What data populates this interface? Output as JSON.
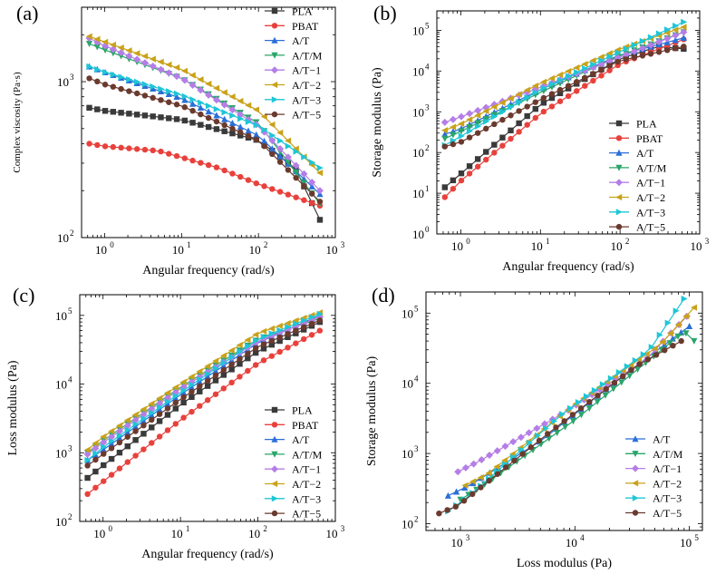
{
  "figure": {
    "description_panels": [
      "(a)",
      "(b)",
      "(c)",
      "(d)"
    ]
  },
  "series_colors": {
    "PLA": "#3a3a3a",
    "PBAT": "#e8413c",
    "A/T": "#2a6fd8",
    "A/T/M": "#2aa56a",
    "A/T−1": "#b57ee6",
    "A/T−2": "#c9a21a",
    "A/T−3": "#1ec6d6",
    "A/T−5": "#6b3a2e"
  },
  "series_markers": {
    "PLA": "square",
    "PBAT": "circle",
    "A/T": "triangle-up",
    "A/T/M": "triangle-down",
    "A/T−1": "diamond",
    "A/T−2": "triangle-left",
    "A/T−3": "triangle-right",
    "A/T−5": "circle"
  },
  "chart_data": [
    {
      "panel_label": "(a)",
      "type": "line",
      "xscale": "log",
      "yscale": "log",
      "xlabel": "Angular frequency (rad/s)",
      "ylabel": "Complex viscosity (Pa·s)",
      "xlim": [
        0.5,
        1000
      ],
      "ylim": [
        100,
        3000
      ],
      "xticks": [
        {
          "v": 1,
          "label": "10",
          "exp": "0"
        },
        {
          "v": 10,
          "label": "10",
          "exp": "1"
        },
        {
          "v": 100,
          "label": "10",
          "exp": "2"
        },
        {
          "v": 1000,
          "label": "10",
          "exp": "3"
        }
      ],
      "yticks": [
        {
          "v": 100,
          "label": "10",
          "exp": "2"
        },
        {
          "v": 1000,
          "label": "10",
          "exp": "3"
        }
      ],
      "legend_position": "top-right",
      "series": [
        {
          "name": "PLA",
          "anchors": [
            [
              0.63,
              680
            ],
            [
              1,
              650
            ],
            [
              10,
              570
            ],
            [
              100,
              420
            ],
            [
              300,
              280
            ],
            [
              630,
              130
            ]
          ]
        },
        {
          "name": "PBAT",
          "anchors": [
            [
              0.63,
              400
            ],
            [
              1,
              385
            ],
            [
              5,
              360
            ],
            [
              30,
              280
            ],
            [
              100,
              220
            ],
            [
              630,
              160
            ]
          ]
        },
        {
          "name": "A/T",
          "anchors": [
            [
              0.63,
              1250
            ],
            [
              1,
              1150
            ],
            [
              10,
              780
            ],
            [
              100,
              450
            ],
            [
              630,
              190
            ]
          ]
        },
        {
          "name": "A/T/M",
          "anchors": [
            [
              0.63,
              1750
            ],
            [
              1,
              1600
            ],
            [
              10,
              1050
            ],
            [
              100,
              540
            ],
            [
              630,
              165
            ]
          ]
        },
        {
          "name": "A/T−1",
          "anchors": [
            [
              0.63,
              1900
            ],
            [
              1,
              1700
            ],
            [
              10,
              1050
            ],
            [
              100,
              520
            ],
            [
              630,
              200
            ]
          ]
        },
        {
          "name": "A/T−2",
          "anchors": [
            [
              0.63,
              1950
            ],
            [
              1,
              1800
            ],
            [
              10,
              1200
            ],
            [
              100,
              650
            ],
            [
              630,
              260
            ]
          ]
        },
        {
          "name": "A/T−3",
          "anchors": [
            [
              0.63,
              1250
            ],
            [
              1,
              1150
            ],
            [
              10,
              820
            ],
            [
              100,
              520
            ],
            [
              630,
              280
            ]
          ]
        },
        {
          "name": "A/T−5",
          "anchors": [
            [
              0.63,
              1050
            ],
            [
              1,
              960
            ],
            [
              10,
              700
            ],
            [
              100,
              420
            ],
            [
              630,
              170
            ]
          ]
        }
      ]
    },
    {
      "panel_label": "(b)",
      "type": "line",
      "xscale": "log",
      "yscale": "log",
      "xlabel": "Angular frequency (rad/s)",
      "ylabel": "Storage modulus (Pa)",
      "xlim": [
        0.5,
        1000
      ],
      "ylim": [
        1,
        300000
      ],
      "xticks": [
        {
          "v": 1,
          "label": "10",
          "exp": "0"
        },
        {
          "v": 10,
          "label": "10",
          "exp": "1"
        },
        {
          "v": 100,
          "label": "10",
          "exp": "2"
        },
        {
          "v": 1000,
          "label": "10",
          "exp": "3"
        }
      ],
      "yticks": [
        {
          "v": 1,
          "label": "10",
          "exp": "0"
        },
        {
          "v": 10,
          "label": "10",
          "exp": "1"
        },
        {
          "v": 100,
          "label": "10",
          "exp": "2"
        },
        {
          "v": 1000,
          "label": "10",
          "exp": "3"
        },
        {
          "v": 10000,
          "label": "10",
          "exp": "4"
        },
        {
          "v": 100000,
          "label": "10",
          "exp": "5"
        }
      ],
      "legend_position": "bottom-right",
      "series": [
        {
          "name": "PLA",
          "anchors": [
            [
              0.63,
              14
            ],
            [
              1,
              30
            ],
            [
              10,
              1500
            ],
            [
              100,
              20000
            ],
            [
              300,
              40000
            ],
            [
              630,
              35000
            ]
          ]
        },
        {
          "name": "PBAT",
          "anchors": [
            [
              0.63,
              8
            ],
            [
              1,
              20
            ],
            [
              10,
              900
            ],
            [
              100,
              15000
            ],
            [
              630,
              60000
            ]
          ]
        },
        {
          "name": "A/T",
          "anchors": [
            [
              0.63,
              280
            ],
            [
              1,
              380
            ],
            [
              10,
              3500
            ],
            [
              100,
              25000
            ],
            [
              630,
              65000
            ]
          ]
        },
        {
          "name": "A/T/M",
          "anchors": [
            [
              0.63,
              220
            ],
            [
              1,
              330
            ],
            [
              10,
              3000
            ],
            [
              100,
              24000
            ],
            [
              630,
              90000
            ]
          ]
        },
        {
          "name": "A/T−1",
          "anchors": [
            [
              0.63,
              550
            ],
            [
              1,
              750
            ],
            [
              10,
              4000
            ],
            [
              100,
              22000
            ],
            [
              630,
              90000
            ]
          ]
        },
        {
          "name": "A/T−2",
          "anchors": [
            [
              0.63,
              350
            ],
            [
              1,
              500
            ],
            [
              10,
              5000
            ],
            [
              100,
              35000
            ],
            [
              630,
              120000
            ]
          ]
        },
        {
          "name": "A/T−3",
          "anchors": [
            [
              0.63,
              150
            ],
            [
              1,
              250
            ],
            [
              10,
              3500
            ],
            [
              100,
              30000
            ],
            [
              630,
              160000
            ]
          ]
        },
        {
          "name": "A/T−5",
          "anchors": [
            [
              0.63,
              140
            ],
            [
              1,
              180
            ],
            [
              10,
              2000
            ],
            [
              100,
              18000
            ],
            [
              630,
              40000
            ]
          ]
        }
      ]
    },
    {
      "panel_label": "(c)",
      "type": "line",
      "xscale": "log",
      "yscale": "log",
      "xlabel": "Angular frequency (rad/s)",
      "ylabel": "Loss modulus (Pa)",
      "xlim": [
        0.5,
        1000
      ],
      "ylim": [
        100,
        200000
      ],
      "xticks": [
        {
          "v": 1,
          "label": "10",
          "exp": "0"
        },
        {
          "v": 10,
          "label": "10",
          "exp": "1"
        },
        {
          "v": 100,
          "label": "10",
          "exp": "2"
        },
        {
          "v": 1000,
          "label": "10",
          "exp": "3"
        }
      ],
      "yticks": [
        {
          "v": 100,
          "label": "10",
          "exp": "2"
        },
        {
          "v": 1000,
          "label": "10",
          "exp": "3"
        },
        {
          "v": 10000,
          "label": "10",
          "exp": "4"
        },
        {
          "v": 100000,
          "label": "10",
          "exp": "5"
        }
      ],
      "legend_position": "bottom-right",
      "series": [
        {
          "name": "PLA",
          "anchors": [
            [
              0.63,
              430
            ],
            [
              1,
              650
            ],
            [
              10,
              5000
            ],
            [
              100,
              30000
            ],
            [
              630,
              80000
            ]
          ]
        },
        {
          "name": "PBAT",
          "anchors": [
            [
              0.63,
              250
            ],
            [
              1,
              380
            ],
            [
              10,
              3000
            ],
            [
              100,
              20000
            ],
            [
              630,
              60000
            ]
          ]
        },
        {
          "name": "A/T",
          "anchors": [
            [
              0.63,
              780
            ],
            [
              1,
              1100
            ],
            [
              10,
              7000
            ],
            [
              100,
              40000
            ],
            [
              630,
              100000
            ]
          ]
        },
        {
          "name": "A/T/M",
          "anchors": [
            [
              0.63,
              1000
            ],
            [
              1,
              1500
            ],
            [
              10,
              9000
            ],
            [
              100,
              45000
            ],
            [
              630,
              90000
            ]
          ]
        },
        {
          "name": "A/T−1",
          "anchors": [
            [
              0.63,
              950
            ],
            [
              1,
              1400
            ],
            [
              10,
              8500
            ],
            [
              100,
              42000
            ],
            [
              630,
              95000
            ]
          ]
        },
        {
          "name": "A/T−2",
          "anchors": [
            [
              0.63,
              1100
            ],
            [
              1,
              1700
            ],
            [
              10,
              10000
            ],
            [
              100,
              55000
            ],
            [
              630,
              110000
            ]
          ]
        },
        {
          "name": "A/T−3",
          "anchors": [
            [
              0.63,
              780
            ],
            [
              1,
              1200
            ],
            [
              10,
              7500
            ],
            [
              100,
              45000
            ],
            [
              630,
              105000
            ]
          ]
        },
        {
          "name": "A/T−5",
          "anchors": [
            [
              0.63,
              650
            ],
            [
              1,
              950
            ],
            [
              10,
              6000
            ],
            [
              100,
              35000
            ],
            [
              630,
              85000
            ]
          ]
        }
      ]
    },
    {
      "panel_label": "(d)",
      "type": "line",
      "xscale": "log",
      "yscale": "log",
      "xlabel": "Loss modulus (Pa)",
      "ylabel": "Storage modulus (Pa)",
      "xlim": [
        500,
        130000
      ],
      "ylim": [
        80,
        200000
      ],
      "xticks": [
        {
          "v": 1000,
          "label": "10",
          "exp": "3"
        },
        {
          "v": 10000,
          "label": "10",
          "exp": "4"
        },
        {
          "v": 100000,
          "label": "10",
          "exp": "5"
        }
      ],
      "yticks": [
        {
          "v": 100,
          "label": "10",
          "exp": "2"
        },
        {
          "v": 1000,
          "label": "10",
          "exp": "3"
        },
        {
          "v": 10000,
          "label": "10",
          "exp": "4"
        },
        {
          "v": 100000,
          "label": "10",
          "exp": "5"
        }
      ],
      "legend_position": "bottom-right",
      "series": [
        {
          "name": "A/T",
          "anchors": [
            [
              780,
              250
            ],
            [
              1200,
              350
            ],
            [
              5000,
              1500
            ],
            [
              30000,
              15000
            ],
            [
              100000,
              65000
            ]
          ]
        },
        {
          "name": "A/T/M",
          "anchors": [
            [
              1000,
              220
            ],
            [
              1500,
              330
            ],
            [
              10000,
              3000
            ],
            [
              50000,
              25000
            ],
            [
              90000,
              55000
            ],
            [
              110000,
              40000
            ]
          ]
        },
        {
          "name": "A/T−1",
          "anchors": [
            [
              950,
              550
            ],
            [
              1400,
              750
            ],
            [
              8500,
              4000
            ],
            [
              42000,
              22000
            ],
            [
              95000,
              90000
            ]
          ]
        },
        {
          "name": "A/T−2",
          "anchors": [
            [
              1100,
              350
            ],
            [
              1700,
              500
            ],
            [
              10000,
              5000
            ],
            [
              55000,
              35000
            ],
            [
              110000,
              120000
            ]
          ]
        },
        {
          "name": "A/T−3",
          "anchors": [
            [
              780,
              150
            ],
            [
              1200,
              250
            ],
            [
              7500,
              3500
            ],
            [
              45000,
              30000
            ],
            [
              90000,
              160000
            ]
          ]
        },
        {
          "name": "A/T−5",
          "anchors": [
            [
              650,
              140
            ],
            [
              950,
              180
            ],
            [
              6000,
              2000
            ],
            [
              35000,
              18000
            ],
            [
              85000,
              40000
            ]
          ]
        }
      ]
    }
  ]
}
